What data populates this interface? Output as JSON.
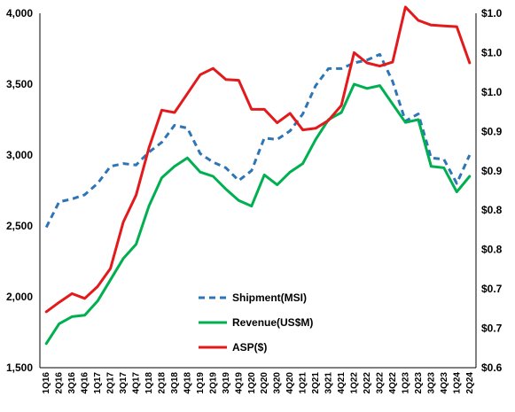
{
  "chart_data": {
    "type": "line",
    "categories": [
      "1Q16",
      "2Q16",
      "3Q16",
      "4Q16",
      "1Q17",
      "2Q17",
      "3Q17",
      "4Q17",
      "1Q18",
      "2Q18",
      "3Q18",
      "4Q18",
      "1Q19",
      "2Q19",
      "3Q19",
      "4Q19",
      "1Q20",
      "2Q20",
      "3Q20",
      "4Q20",
      "1Q21",
      "2Q21",
      "3Q21",
      "4Q21",
      "1Q22",
      "2Q22",
      "3Q22",
      "4Q22",
      "1Q23",
      "2Q23",
      "3Q23",
      "4Q23",
      "1Q24",
      "2Q24"
    ],
    "y_left": {
      "ticks": [
        1500,
        2000,
        2500,
        3000,
        3500,
        4000
      ],
      "tick_labels": [
        "1,500",
        "2,000",
        "2,500",
        "3,000",
        "3,500",
        "4,000"
      ],
      "ylim": [
        1500,
        4000
      ]
    },
    "y_right": {
      "ticks": [
        0.6,
        0.65,
        0.7,
        0.75,
        0.8,
        0.85,
        0.9,
        0.95,
        1.0,
        1.05
      ],
      "tick_labels": [
        "$0.6",
        "$0.7",
        "$0.7",
        "$0.8",
        "$0.8",
        "$0.9",
        "$0.9",
        "$1.0",
        "$1.0",
        "$1.0"
      ],
      "ylim": [
        0.6,
        1.05
      ]
    },
    "series": [
      {
        "name": "Shipment(MSI)",
        "axis": "left",
        "color": "#2E75B6",
        "dash": true,
        "values": [
          2490,
          2670,
          2690,
          2720,
          2800,
          2920,
          2940,
          2930,
          3020,
          3090,
          3210,
          3190,
          3010,
          2950,
          2910,
          2820,
          2890,
          3120,
          3110,
          3170,
          3290,
          3490,
          3610,
          3610,
          3650,
          3670,
          3710,
          3520,
          3240,
          3290,
          2980,
          2970,
          2800,
          3000
        ]
      },
      {
        "name": "Revenue(US$M)",
        "axis": "left",
        "color": "#00B050",
        "dash": false,
        "values": [
          1670,
          1810,
          1860,
          1870,
          1970,
          2120,
          2270,
          2370,
          2640,
          2840,
          2920,
          2980,
          2880,
          2850,
          2760,
          2680,
          2640,
          2860,
          2790,
          2880,
          2940,
          3110,
          3250,
          3300,
          3500,
          3470,
          3490,
          3360,
          3230,
          3250,
          2920,
          2910,
          2740,
          2850
        ]
      },
      {
        "name": "ASP($)",
        "axis": "right",
        "color": "#E31A1C",
        "dash": false,
        "values": [
          0.671,
          0.683,
          0.694,
          0.688,
          0.703,
          0.726,
          0.785,
          0.819,
          0.879,
          0.927,
          0.924,
          0.948,
          0.972,
          0.98,
          0.966,
          0.965,
          0.928,
          0.928,
          0.911,
          0.923,
          0.902,
          0.904,
          0.914,
          0.933,
          1.0,
          0.987,
          0.983,
          0.988,
          1.058,
          1.041,
          1.035,
          1.034,
          1.033,
          0.987
        ]
      }
    ],
    "legend": {
      "position": "center-left",
      "entries": [
        "Shipment(MSI)",
        "Revenue(US$M)",
        "ASP($)"
      ]
    },
    "grid": false,
    "title": "",
    "xlabel": "",
    "ylabel": ""
  }
}
